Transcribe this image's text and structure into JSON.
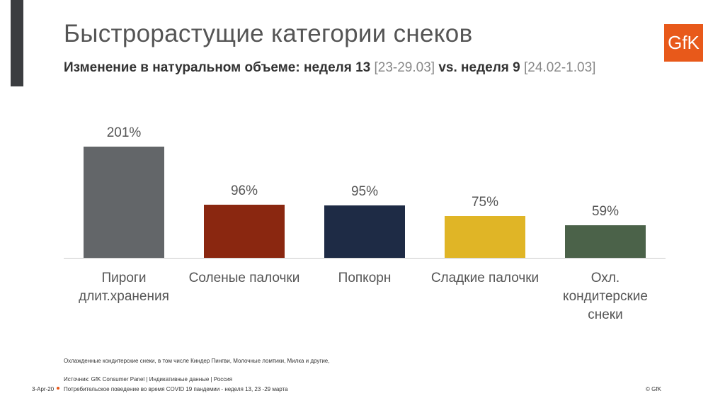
{
  "chart_data": {
    "type": "bar",
    "title": "Быстрорастущие категории снеков",
    "subtitle": [
      "Изменение в натуральном объеме: неделя 13",
      "[23-29.03]",
      "vs. неделя 9",
      "[24.02-1.03]"
    ],
    "categories": [
      "Пироги длит.хранения",
      "Соленые палочки",
      "Попкорн",
      "Сладкие палочки",
      "Охл. кондитерские снеки"
    ],
    "values": [
      201,
      96,
      95,
      75,
      59
    ],
    "value_labels": [
      "201%",
      "96%",
      "95%",
      "75%",
      "59%"
    ],
    "colors": [
      "#636669",
      "#8a2710",
      "#1e2b45",
      "#e0b526",
      "#4b6249"
    ]
  },
  "logo": "GfK",
  "footer": {
    "note": "Охлажденные кондитерские снеки, в том числе Киндер Пингви, Молочные ломтики, Милка и другие,",
    "source": "Источник: GfK Consumer Panel | Индикативные данные | Россия",
    "date": "3-Apr-20",
    "text": "Потребительское поведение во время COVID 19 пандемии - неделя 13, 23 -29 марта",
    "copyright": "© GfK"
  }
}
